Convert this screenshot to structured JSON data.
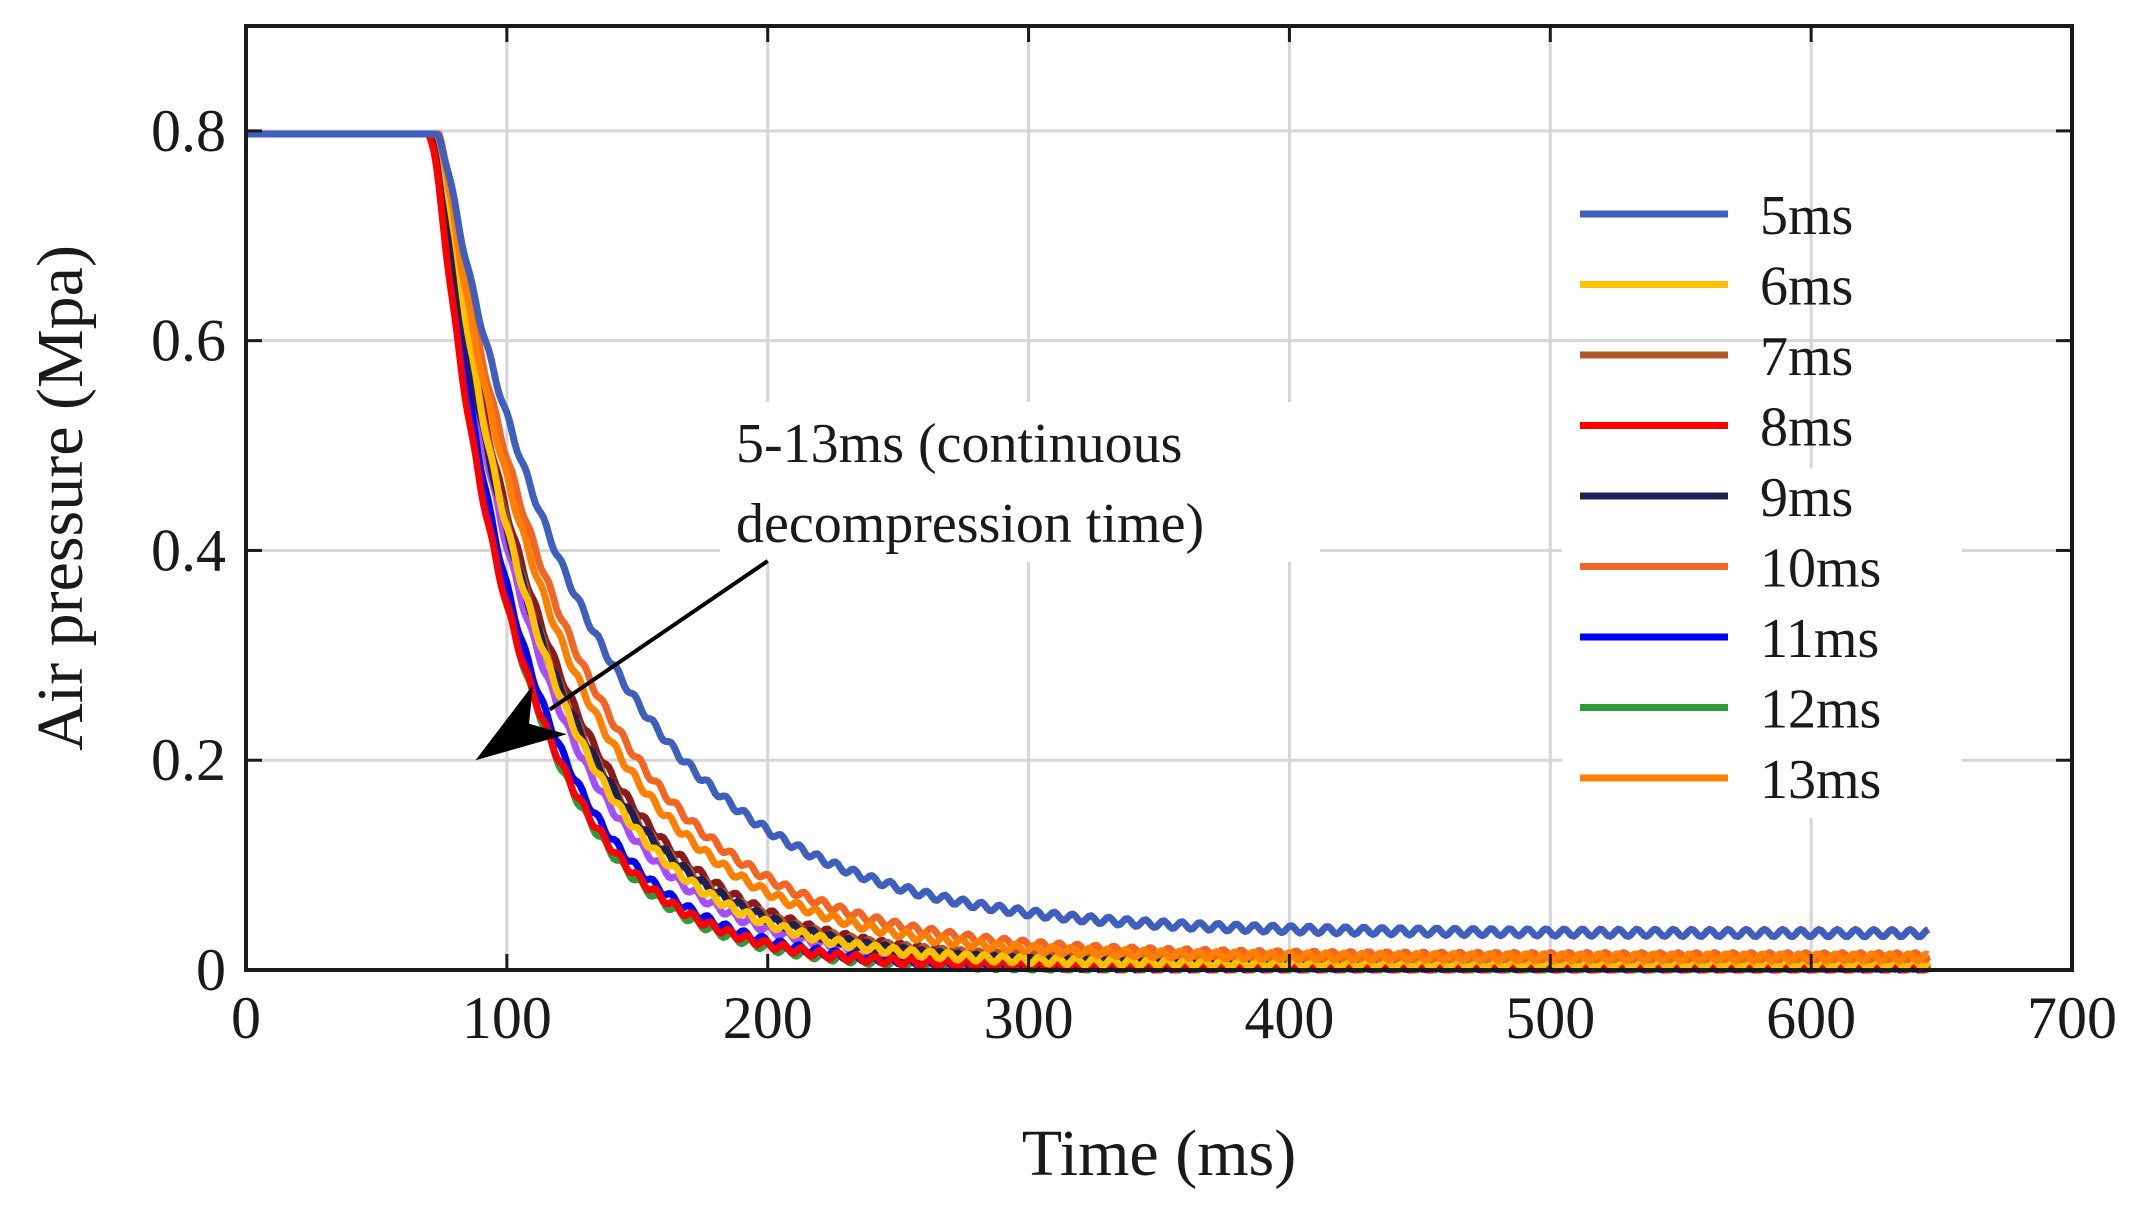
{
  "chart_data": {
    "type": "line",
    "title": "",
    "xlabel": "Time (ms)",
    "ylabel": "Air pressure (Mpa)",
    "xlim": [
      0,
      700
    ],
    "ylim": [
      0,
      0.9
    ],
    "xticks": [
      0,
      100,
      200,
      300,
      400,
      500,
      600,
      700
    ],
    "yticks": [
      0,
      0.2,
      0.4,
      0.6,
      0.8
    ],
    "xtick_labels": [
      "0",
      "100",
      "200",
      "300",
      "400",
      "500",
      "600",
      "700"
    ],
    "ytick_labels": [
      "0",
      "0.2",
      "0.4",
      "0.6",
      "0.8"
    ],
    "grid": true,
    "legend_position": "right",
    "annotation": {
      "line1": "5-13ms (continuous",
      "line2": "decompression time)",
      "arrow_from": [
        200,
        0.39
      ],
      "arrow_to": [
        88,
        0.2
      ]
    },
    "series": [
      {
        "name": "5ms",
        "color": "#3f5fbf",
        "t0": 73,
        "tau": 62,
        "floor": 0.035
      },
      {
        "name": "6ms",
        "color": "#ffc000",
        "t0": 73,
        "tau": 42,
        "floor": 0.006
      },
      {
        "name": "7ms",
        "color": "#b0572a",
        "t0": 72,
        "tau": 44,
        "floor": 0.008
      },
      {
        "name": "8ms",
        "color": "#ff0000",
        "t0": 70,
        "tau": 36,
        "floor": 0.003
      },
      {
        "name": "9ms",
        "color": "#1c2055",
        "t0": 71,
        "tau": 45,
        "floor": 0.004
      },
      {
        "name": "10ms",
        "color": "#f26522",
        "t0": 73,
        "tau": 54,
        "floor": 0.013
      },
      {
        "name": "11ms",
        "color": "#0000ff",
        "t0": 71,
        "tau": 37,
        "floor": 0.003
      },
      {
        "name": "12ms",
        "color": "#2e9b3a",
        "t0": 71,
        "tau": 35,
        "floor": 0.002
      },
      {
        "name": "13ms",
        "color": "#ff7f00",
        "t0": 73,
        "tau": 50,
        "floor": 0.012
      }
    ],
    "extra_series": [
      {
        "color": "#8b1a1a",
        "t0": 72,
        "tau": 46,
        "floor": 0.006
      },
      {
        "color": "#a64dff",
        "t0": 72,
        "tau": 41,
        "floor": 0.004
      }
    ],
    "plateau": 0.797,
    "x_end": 645
  }
}
